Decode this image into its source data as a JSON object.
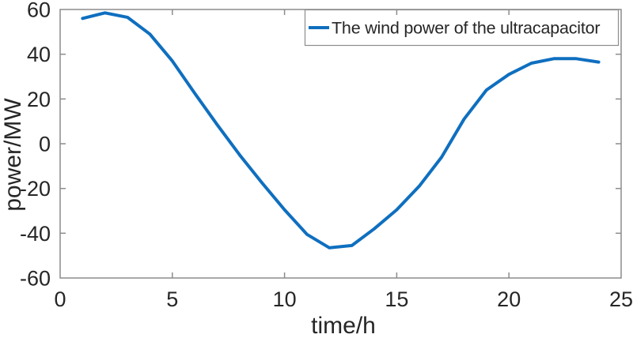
{
  "chart_data": {
    "type": "line",
    "title": "",
    "xlabel": "time/h",
    "ylabel": "power/MW",
    "legend_label": "The wind power of the ultracapacitor",
    "legend_position": "top-right-inside",
    "grid": false,
    "x": [
      1,
      2,
      3,
      4,
      5,
      6,
      7,
      8,
      9,
      10,
      11,
      12,
      13,
      14,
      15,
      16,
      17,
      18,
      19,
      20,
      21,
      22,
      23,
      24
    ],
    "series": [
      {
        "name": "The wind power of the ultracapacitor",
        "values": [
          56,
          58.5,
          56.5,
          49,
          37,
          22.5,
          8.5,
          -5,
          -17.5,
          -29.5,
          -40.5,
          -46.5,
          -45.5,
          -38,
          -29.5,
          -19,
          -6,
          11,
          24,
          31,
          36,
          38,
          38,
          36.5
        ]
      }
    ],
    "xlim": [
      0,
      25
    ],
    "ylim": [
      -60,
      60
    ],
    "xticks": [
      0,
      5,
      10,
      15,
      20,
      25
    ],
    "yticks": [
      -60,
      -40,
      -20,
      0,
      20,
      40,
      60
    ],
    "colors": {
      "line": "#0f6fbf",
      "axis": "#8c8c8c",
      "text": "#262626",
      "background": "#ffffff"
    }
  }
}
